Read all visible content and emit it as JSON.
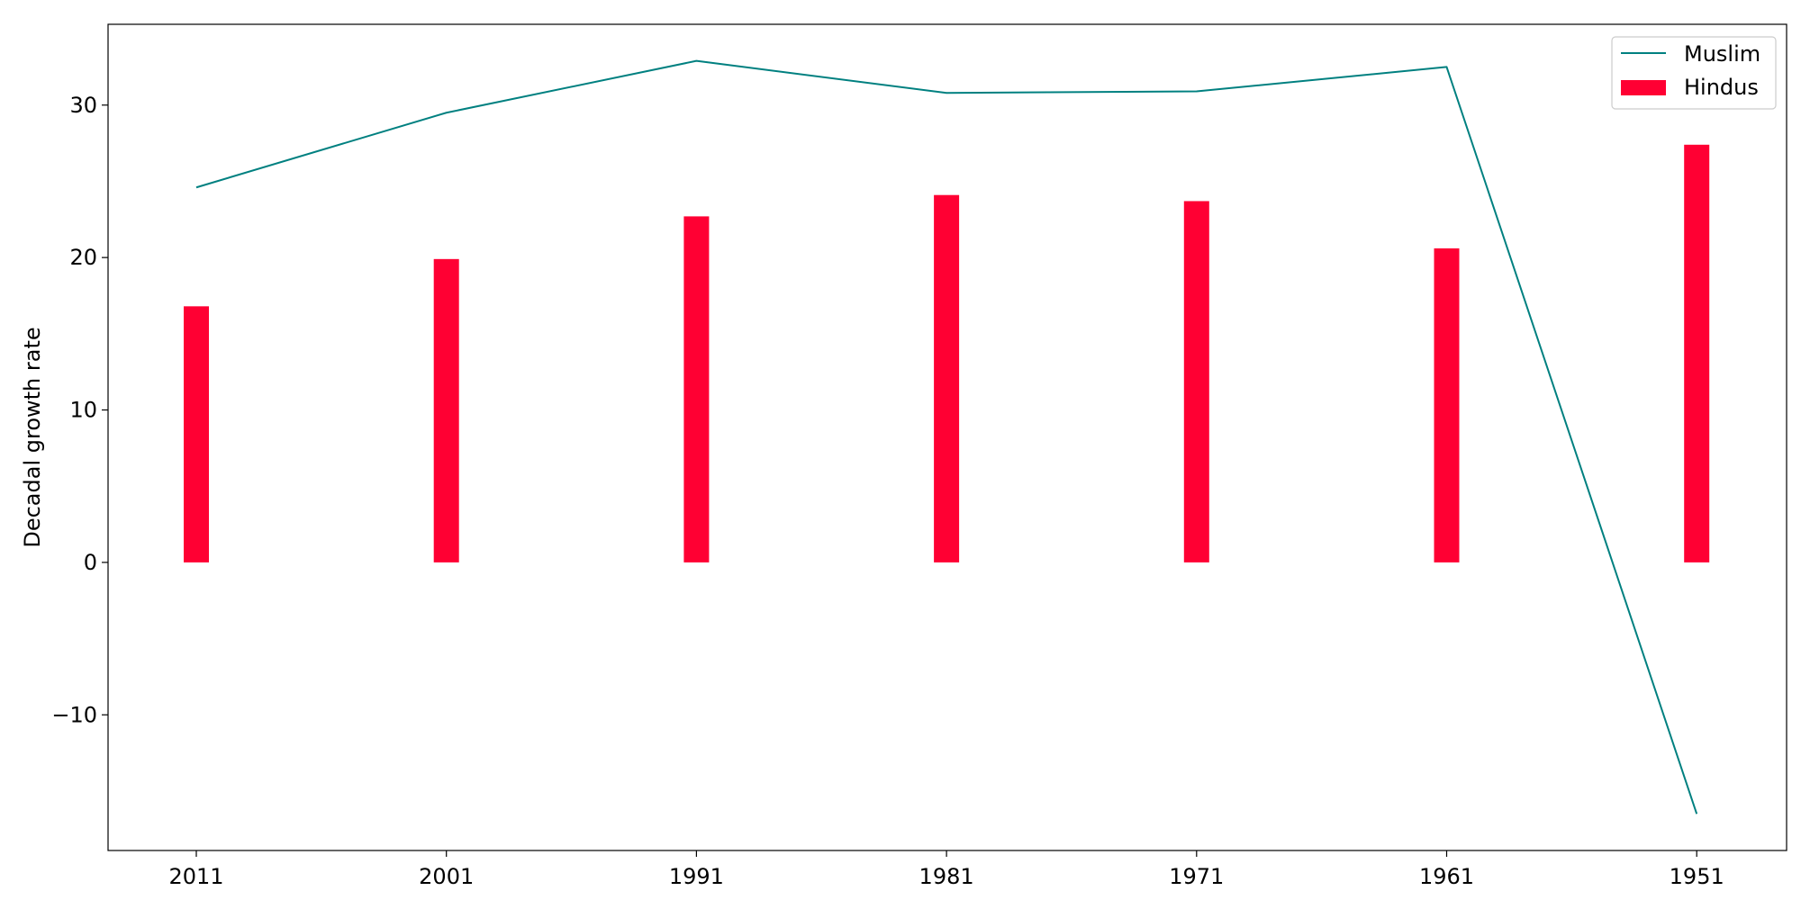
{
  "chart_data": {
    "type": "bar",
    "categories": [
      "2011",
      "2001",
      "1991",
      "1981",
      "1971",
      "1961",
      "1951"
    ],
    "series": [
      {
        "name": "Hindus",
        "type": "bar",
        "color": "#ff0033",
        "values": [
          16.8,
          19.9,
          22.7,
          24.1,
          23.7,
          20.6,
          27.4
        ]
      },
      {
        "name": "Muslim",
        "type": "line",
        "color": "#008080",
        "values": [
          24.6,
          29.5,
          32.9,
          30.8,
          30.9,
          32.5,
          -16.5
        ]
      }
    ],
    "title": "",
    "xlabel": "",
    "ylabel": "Decadal growth rate",
    "ylim": [
      -18.9,
      35.3
    ],
    "yticks": [
      -10,
      0,
      10,
      20,
      30
    ],
    "ytick_labels": [
      "−10",
      "0",
      "10",
      "20",
      "30"
    ],
    "grid": false,
    "legend": {
      "placement": "top-right",
      "order": [
        "Muslim",
        "Hindus"
      ]
    }
  }
}
